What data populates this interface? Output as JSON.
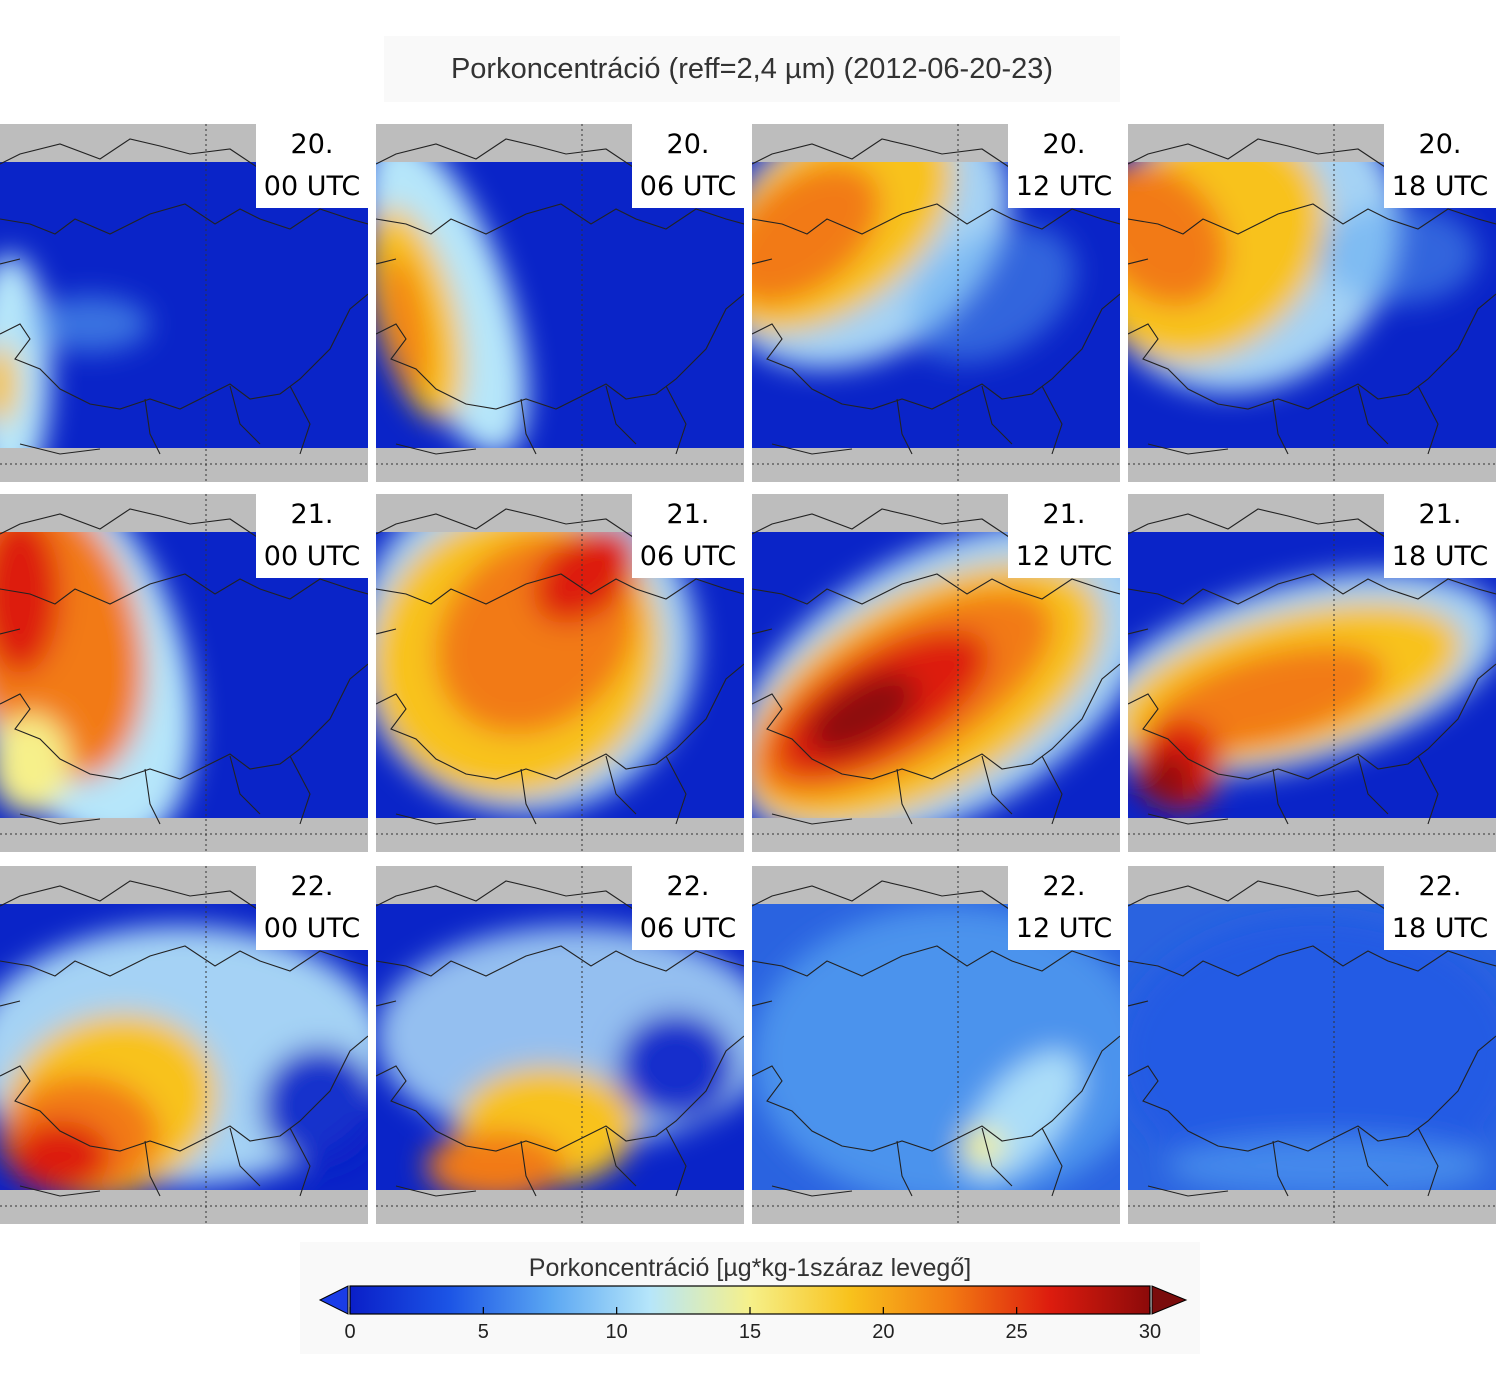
{
  "title": "Porkoncentráció (reff=2,4 µm) (2012-06-20-23)",
  "panels": [
    {
      "day": "20.",
      "time": "00 UTC"
    },
    {
      "day": "20.",
      "time": "06 UTC"
    },
    {
      "day": "20.",
      "time": "12 UTC"
    },
    {
      "day": "20.",
      "time": "18 UTC"
    },
    {
      "day": "21.",
      "time": "00 UTC"
    },
    {
      "day": "21.",
      "time": "06 UTC"
    },
    {
      "day": "21.",
      "time": "12 UTC"
    },
    {
      "day": "21.",
      "time": "18 UTC"
    },
    {
      "day": "22.",
      "time": "00 UTC"
    },
    {
      "day": "22.",
      "time": "06 UTC"
    },
    {
      "day": "22.",
      "time": "12 UTC"
    },
    {
      "day": "22.",
      "time": "18 UTC"
    }
  ],
  "colorbar": {
    "title": "Porkoncentráció [µg*kg-1száraz levegő]",
    "ticks": [
      "0",
      "5",
      "10",
      "15",
      "20",
      "25",
      "30"
    ],
    "min": 0,
    "max": 30,
    "stops": [
      "#0a1fc8",
      "#1c55e6",
      "#5aa6f2",
      "#b6e6fa",
      "#f6f08a",
      "#f8c21c",
      "#f27a12",
      "#dd1c0e",
      "#8c0a0a"
    ],
    "arrow_low_color": "#1a3ce8",
    "arrow_high_color": "#7a0c0c"
  }
}
